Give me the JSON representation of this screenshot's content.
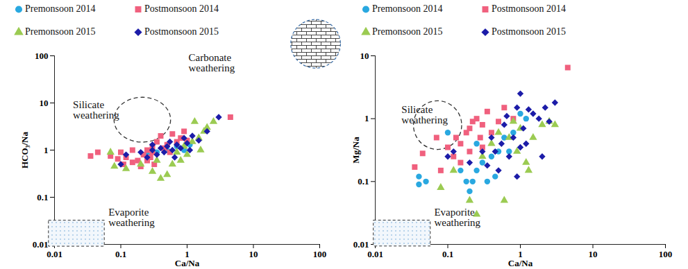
{
  "chart_data": [
    {
      "type": "scatter",
      "x_label": "Ca/Na",
      "y_label": "HCO₃/Na",
      "log": true,
      "xlim": [
        0.01,
        100
      ],
      "ylim": [
        0.01,
        100
      ],
      "xticks": [
        0.01,
        0.1,
        1,
        10,
        100
      ],
      "yticks": [
        0.01,
        0.1,
        1,
        10,
        100
      ],
      "legend": "top-left",
      "series": [
        {
          "name": "Premonsoon 2014",
          "color": "#29a8e0",
          "marker": "circle",
          "x": [
            0.25,
            0.35,
            0.5,
            0.7,
            0.9,
            1.1
          ],
          "y": [
            0.8,
            0.9,
            1.0,
            1.2,
            1.0,
            1.3
          ]
        },
        {
          "name": "Postmonsoon 2014",
          "color": "#f0607e",
          "marker": "square",
          "x": [
            0.035,
            0.045,
            0.07,
            0.09,
            0.1,
            0.11,
            0.12,
            0.15,
            0.18,
            0.2,
            0.22,
            0.25,
            0.28,
            0.3,
            0.32,
            0.35,
            0.4,
            0.45,
            0.5,
            0.6,
            0.7,
            0.8,
            0.9,
            1.0,
            0.25,
            0.15,
            0.3,
            0.55,
            4.5
          ],
          "y": [
            0.75,
            0.9,
            0.75,
            0.65,
            0.9,
            0.5,
            0.7,
            0.55,
            0.6,
            0.45,
            0.8,
            1.0,
            0.7,
            1.2,
            0.5,
            1.5,
            2.0,
            1.1,
            1.3,
            2.2,
            1.5,
            1.8,
            2.5,
            1.6,
            0.6,
            1.0,
            0.9,
            0.9,
            5.0
          ]
        },
        {
          "name": "Premonsoon 2015",
          "color": "#9bcb52",
          "marker": "triangle",
          "x": [
            0.07,
            0.08,
            0.12,
            0.3,
            0.4,
            0.5,
            0.6,
            0.8,
            1.0,
            1.2,
            1.5,
            1.8,
            2.0,
            2.5,
            1.3,
            0.9,
            0.7,
            1.6,
            0.35,
            0.2
          ],
          "y": [
            0.9,
            0.45,
            0.4,
            0.35,
            0.25,
            0.3,
            0.5,
            0.6,
            0.8,
            1.5,
            1.8,
            2.5,
            3.0,
            4.0,
            4.0,
            1.2,
            0.9,
            1.0,
            0.6,
            0.5
          ]
        },
        {
          "name": "Postmonsoon 2015",
          "color": "#1c1ca8",
          "marker": "diamond",
          "x": [
            0.1,
            0.12,
            0.2,
            0.25,
            0.3,
            0.35,
            0.4,
            0.45,
            0.5,
            0.55,
            0.6,
            0.7,
            0.8,
            0.9,
            1.0,
            1.2,
            1.5,
            2.0,
            3.0,
            0.65,
            0.3,
            1.1
          ],
          "y": [
            0.5,
            0.8,
            0.9,
            0.7,
            1.0,
            0.8,
            1.1,
            0.9,
            1.2,
            1.5,
            1.0,
            1.3,
            1.1,
            1.8,
            1.4,
            2.0,
            1.6,
            2.5,
            5.0,
            0.7,
            1.3,
            1.0
          ]
        }
      ],
      "annotations": [
        {
          "text": "Silicate\nweathering",
          "x": 0.019,
          "y": 7,
          "region": {
            "shape": "dashed_circle",
            "x": [
              0.08,
              0.57
            ],
            "y": [
              1.45,
              13
            ]
          }
        },
        {
          "text": "Carbonate\nweathering",
          "x": 1.05,
          "y": 70,
          "region": {
            "shape": "brick_ellipse",
            "x": [
              37,
              208
            ],
            "y": [
              54,
              580
            ]
          }
        },
        {
          "text": "Evaporite\nweathering",
          "x": 0.065,
          "y": 0.037,
          "region": {
            "shape": "dotted_box",
            "x": [
              0.0082,
              0.057
            ],
            "y": [
              0.009,
              0.032
            ]
          }
        }
      ]
    },
    {
      "type": "scatter",
      "x_label": "Ca/Na",
      "y_label": "Mg/Na",
      "log": true,
      "xlim": [
        0.01,
        100
      ],
      "ylim": [
        0.01,
        10
      ],
      "xticks": [
        0.01,
        0.1,
        1,
        10,
        100
      ],
      "yticks": [
        0.01,
        0.1,
        1,
        10
      ],
      "legend": "top-left",
      "series": [
        {
          "name": "Premonsoon 2014",
          "color": "#29a8e0",
          "marker": "circle",
          "x": [
            0.04,
            0.04,
            0.05,
            0.1,
            0.15,
            0.18,
            0.2,
            0.22,
            0.25,
            0.3,
            0.35,
            0.4,
            0.5,
            0.6,
            0.8,
            1.0,
            1.2,
            0.45,
            0.7,
            0.25
          ],
          "y": [
            0.12,
            0.09,
            0.1,
            0.6,
            0.15,
            0.1,
            0.07,
            0.1,
            0.15,
            0.2,
            0.1,
            0.25,
            0.3,
            0.5,
            0.6,
            1.2,
            1.0,
            0.12,
            0.3,
            0.4
          ]
        },
        {
          "name": "Postmonsoon 2014",
          "color": "#f0607e",
          "marker": "square",
          "x": [
            0.035,
            0.045,
            0.07,
            0.08,
            0.1,
            0.12,
            0.13,
            0.15,
            0.18,
            0.2,
            0.2,
            0.22,
            0.25,
            0.28,
            0.3,
            0.35,
            0.4,
            0.5,
            0.6,
            0.8,
            0.15,
            0.3,
            4.5
          ],
          "y": [
            0.17,
            0.28,
            0.5,
            0.15,
            0.35,
            0.25,
            0.5,
            0.4,
            0.6,
            0.7,
            0.3,
            0.9,
            1.0,
            0.5,
            0.8,
            1.3,
            0.6,
            0.9,
            1.5,
            1.0,
            0.2,
            0.35,
            6.5
          ]
        },
        {
          "name": "Premonsoon 2015",
          "color": "#9bcb52",
          "marker": "triangle",
          "x": [
            0.08,
            0.12,
            0.2,
            0.25,
            0.3,
            0.4,
            0.5,
            0.6,
            0.7,
            0.9,
            1.0,
            1.2,
            1.5,
            2.0,
            2.5,
            3.0,
            0.8,
            1.3
          ],
          "y": [
            0.08,
            0.15,
            0.05,
            0.03,
            0.25,
            0.4,
            0.6,
            0.05,
            0.5,
            0.3,
            0.7,
            0.2,
            0.5,
            0.8,
            0.9,
            0.8,
            0.9,
            0.15
          ]
        },
        {
          "name": "Postmonsoon 2015",
          "color": "#1c1ca8",
          "marker": "diamond",
          "x": [
            0.1,
            0.12,
            0.2,
            0.3,
            0.35,
            0.4,
            0.45,
            0.5,
            0.55,
            0.6,
            0.7,
            0.8,
            0.9,
            1.0,
            1.1,
            1.2,
            1.5,
            1.8,
            2.0,
            2.5,
            3.0,
            1.3,
            0.65,
            0.9,
            2.2,
            1.0
          ],
          "y": [
            0.25,
            0.3,
            0.2,
            0.3,
            0.18,
            0.5,
            0.3,
            0.15,
            0.4,
            0.8,
            0.25,
            0.5,
            1.5,
            2.5,
            0.7,
            0.4,
            1.2,
            1.0,
            0.25,
            0.9,
            1.8,
            1.4,
            1.1,
            0.12,
            1.5,
            0.35
          ]
        }
      ],
      "annotations": [
        {
          "text": "Silicate\nweathering",
          "x": 0.023,
          "y": 1.15,
          "region": {
            "shape": "dashed_circle",
            "x": [
              0.034,
              0.157
            ],
            "y": [
              0.32,
              1.9
            ]
          }
        },
        {
          "text": "Evaporite\nweathering",
          "x": 0.065,
          "y": 0.027,
          "region": {
            "shape": "dotted_box",
            "x": [
              0.0095,
              0.058
            ],
            "y": [
              0.0093,
              0.024
            ]
          }
        }
      ]
    }
  ]
}
